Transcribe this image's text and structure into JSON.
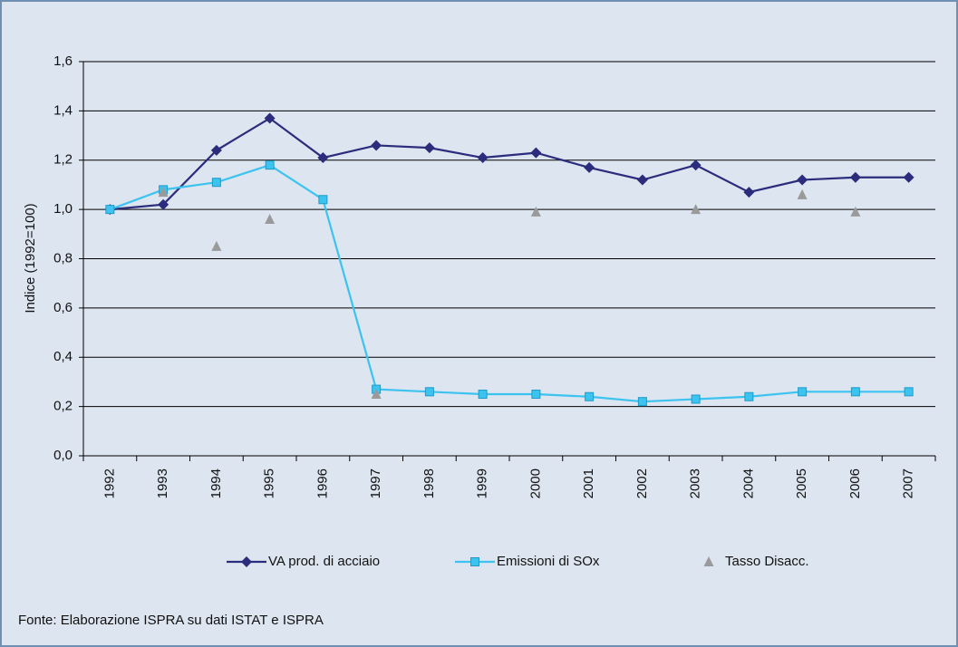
{
  "chart_data": {
    "type": "line",
    "ylabel": "Indice (1992=100)",
    "source": "Fonte: Elaborazione ISPRA su dati ISTAT e ISPRA",
    "categories": [
      "1992",
      "1993",
      "1994",
      "1995",
      "1996",
      "1997",
      "1998",
      "1999",
      "2000",
      "2001",
      "2002",
      "2003",
      "2004",
      "2005",
      "2006",
      "2007"
    ],
    "series": [
      {
        "name": "VA prod. di acciaio",
        "color": "#2b2c7c",
        "marker": "diamond",
        "line": true,
        "values": [
          1.0,
          1.02,
          1.24,
          1.37,
          1.21,
          1.26,
          1.25,
          1.21,
          1.23,
          1.17,
          1.12,
          1.18,
          1.07,
          1.12,
          1.13,
          1.13
        ]
      },
      {
        "name": "Emissioni di SOx",
        "color": "#3cc3ef",
        "marker": "square",
        "line": true,
        "values": [
          1.0,
          1.08,
          1.11,
          1.18,
          1.04,
          0.27,
          0.26,
          0.25,
          0.25,
          0.24,
          0.22,
          0.23,
          0.24,
          0.26,
          0.26,
          0.26
        ]
      },
      {
        "name": "Tasso Disacc.",
        "color": "#9a9a9a",
        "marker": "triangle",
        "line": false,
        "values": [
          null,
          1.07,
          0.85,
          0.96,
          null,
          0.25,
          null,
          null,
          0.99,
          null,
          null,
          1.0,
          null,
          1.06,
          0.99,
          null
        ]
      }
    ],
    "ylim": [
      0,
      1.6
    ],
    "yticks": [
      {
        "value": 0,
        "label": "0,0"
      },
      {
        "value": 0.2,
        "label": "0,2"
      },
      {
        "value": 0.4,
        "label": "0,4"
      },
      {
        "value": 0.6,
        "label": "0,6"
      },
      {
        "value": 0.8,
        "label": "0,8"
      },
      {
        "value": 1.0,
        "label": "1,0"
      },
      {
        "value": 1.2,
        "label": "1,2"
      },
      {
        "value": 1.4,
        "label": "1,4"
      },
      {
        "value": 1.6,
        "label": "1,6"
      }
    ],
    "grid": true,
    "legend": "bottom"
  }
}
